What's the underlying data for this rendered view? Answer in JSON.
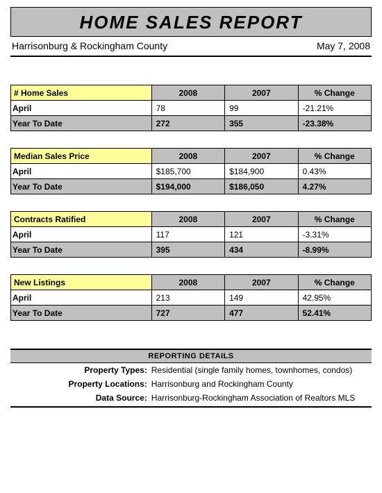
{
  "title": "HOME SALES REPORT",
  "region": "Harrisonburg & Rockingham County",
  "report_date": "May 7, 2008",
  "colors": {
    "header_bg": "#c0c0c0",
    "highlight_bg": "#ffff99",
    "border": "#000000",
    "page_bg": "#ffffff"
  },
  "columns": {
    "year_current": "2008",
    "year_prior": "2007",
    "change": "% Change"
  },
  "row_labels": {
    "month": "April",
    "ytd": "Year To Date"
  },
  "sections": [
    {
      "name": "# Home Sales",
      "month": {
        "current": "78",
        "prior": "99",
        "change": "-21.21%"
      },
      "ytd": {
        "current": "272",
        "prior": "355",
        "change": "-23.38%"
      }
    },
    {
      "name": "Median Sales Price",
      "month": {
        "current": "$185,700",
        "prior": "$184,900",
        "change": "0.43%"
      },
      "ytd": {
        "current": "$194,000",
        "prior": "$186,050",
        "change": "4.27%"
      }
    },
    {
      "name": "Contracts Ratified",
      "month": {
        "current": "117",
        "prior": "121",
        "change": "-3.31%"
      },
      "ytd": {
        "current": "395",
        "prior": "434",
        "change": "-8.99%"
      }
    },
    {
      "name": "New Listings",
      "month": {
        "current": "213",
        "prior": "149",
        "change": "42.95%"
      },
      "ytd": {
        "current": "727",
        "prior": "477",
        "change": "52.41%"
      }
    }
  ],
  "details": {
    "title": "REPORTING DETAILS",
    "rows": [
      {
        "k": "Property Types:",
        "v": "Residential (single family homes, townhomes, condos)"
      },
      {
        "k": "Property Locations:",
        "v": "Harrisonburg and Rockingham County"
      },
      {
        "k": "Data Source:",
        "v": "Harrisonburg-Rockingham Association of Realtors MLS"
      }
    ]
  }
}
